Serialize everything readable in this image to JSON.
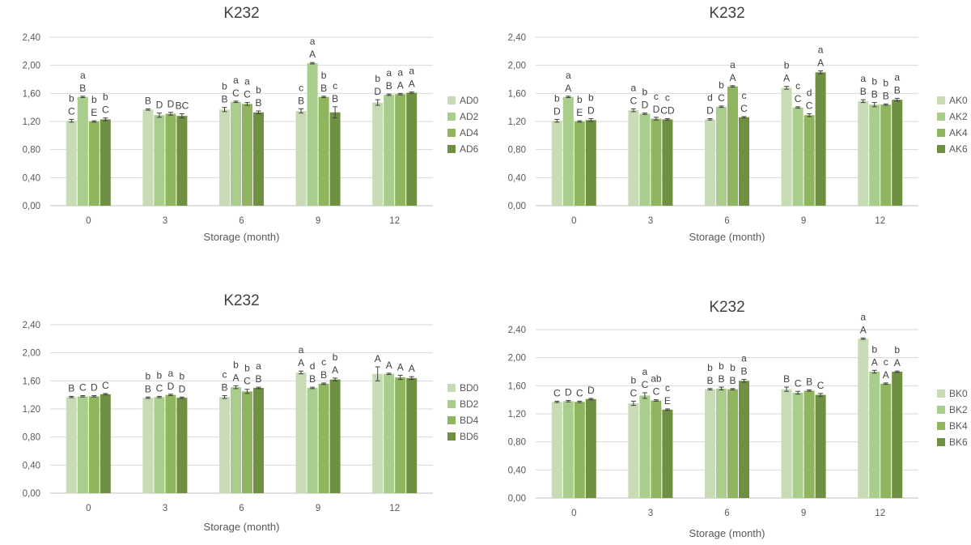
{
  "colors": [
    "#c7dbb4",
    "#a9cd8c",
    "#8fb65e",
    "#6f8f42"
  ],
  "chart_data": [
    {
      "type": "bar",
      "title": "K232",
      "xlabel": "Storage (month)",
      "ylabel": "",
      "categories": [
        "0",
        "3",
        "6",
        "9",
        "12"
      ],
      "yticks": [
        "0,00",
        "0,40",
        "0,80",
        "1,20",
        "1,60",
        "2,00",
        "2,40"
      ],
      "ylim": [
        0,
        2.4
      ],
      "grid": true,
      "legend_position": "right",
      "series": [
        {
          "name": "AD0",
          "values": [
            1.21,
            1.37,
            1.37,
            1.35,
            1.47
          ],
          "errors": [
            0.02,
            0.01,
            0.03,
            0.03,
            0.04
          ],
          "labels_upper": [
            "b",
            "",
            "b",
            "c",
            "b"
          ],
          "labels_lower": [
            "C",
            "B",
            "B",
            "B",
            "D"
          ]
        },
        {
          "name": "AD2",
          "values": [
            1.55,
            1.29,
            1.48,
            2.03,
            1.58
          ],
          "errors": [
            0.01,
            0.03,
            0.01,
            0.01,
            0.01
          ],
          "labels_upper": [
            "a",
            "",
            "a",
            "a",
            "a"
          ],
          "labels_lower": [
            "B",
            "D",
            "C",
            "A",
            "B"
          ]
        },
        {
          "name": "AD4",
          "values": [
            1.2,
            1.31,
            1.45,
            1.55,
            1.59
          ],
          "errors": [
            0.01,
            0.02,
            0.02,
            0.01,
            0.01
          ],
          "labels_upper": [
            "b",
            "",
            "a",
            "b",
            "a"
          ],
          "labels_lower": [
            "E",
            "D",
            "C",
            "B",
            "A"
          ]
        },
        {
          "name": "AD6",
          "values": [
            1.23,
            1.28,
            1.33,
            1.33,
            1.61
          ],
          "errors": [
            0.02,
            0.03,
            0.02,
            0.08,
            0.01
          ],
          "labels_upper": [
            "b",
            "",
            "b",
            "c",
            "a"
          ],
          "labels_lower": [
            "C",
            "BC",
            "B",
            "B",
            "A"
          ]
        }
      ]
    },
    {
      "type": "bar",
      "title": "K232",
      "xlabel": "Storage (month)",
      "ylabel": "",
      "categories": [
        "0",
        "3",
        "6",
        "9",
        "12"
      ],
      "yticks": [
        "0,00",
        "0,40",
        "0,80",
        "1,20",
        "1,60",
        "2,00",
        "2,40"
      ],
      "ylim": [
        0,
        2.4
      ],
      "grid": true,
      "legend_position": "right",
      "series": [
        {
          "name": "AK0",
          "values": [
            1.21,
            1.36,
            1.23,
            1.68,
            1.49
          ],
          "errors": [
            0.02,
            0.02,
            0.01,
            0.02,
            0.02
          ],
          "labels_upper": [
            "b",
            "a",
            "d",
            "b",
            "a"
          ],
          "labels_lower": [
            "D",
            "C",
            "D",
            "A",
            "B"
          ]
        },
        {
          "name": "AK2",
          "values": [
            1.55,
            1.31,
            1.41,
            1.4,
            1.44
          ],
          "errors": [
            0.01,
            0.01,
            0.01,
            0.01,
            0.03
          ],
          "labels_upper": [
            "a",
            "b",
            "b",
            "c",
            "b"
          ],
          "labels_lower": [
            "A",
            "D",
            "C",
            "C",
            "B"
          ]
        },
        {
          "name": "AK4",
          "values": [
            1.2,
            1.24,
            1.7,
            1.29,
            1.44
          ],
          "errors": [
            0.01,
            0.02,
            0.01,
            0.02,
            0.01
          ],
          "labels_upper": [
            "b",
            "c",
            "a",
            "d",
            "b"
          ],
          "labels_lower": [
            "E",
            "D",
            "A",
            "C",
            "B"
          ]
        },
        {
          "name": "AK6",
          "values": [
            1.22,
            1.23,
            1.26,
            1.9,
            1.51
          ],
          "errors": [
            0.02,
            0.01,
            0.01,
            0.02,
            0.02
          ],
          "labels_upper": [
            "b",
            "c",
            "c",
            "a",
            "a"
          ],
          "labels_lower": [
            "D",
            "CD",
            "C",
            "A",
            "B"
          ]
        }
      ]
    },
    {
      "type": "bar",
      "title": "K232",
      "xlabel": "Storage (month)",
      "ylabel": "",
      "categories": [
        "0",
        "3",
        "6",
        "9",
        "12"
      ],
      "yticks": [
        "0,00",
        "0,40",
        "0,80",
        "1,20",
        "1,60",
        "2,00",
        "2,40"
      ],
      "ylim": [
        0,
        2.4
      ],
      "grid": true,
      "legend_position": "right",
      "series": [
        {
          "name": "BD0",
          "values": [
            1.37,
            1.36,
            1.37,
            1.72,
            1.7
          ],
          "errors": [
            0.01,
            0.01,
            0.02,
            0.02,
            0.1
          ],
          "labels_upper": [
            "",
            "b",
            "c",
            "a",
            ""
          ],
          "labels_lower": [
            "B",
            "B",
            "B",
            "A",
            "A"
          ]
        },
        {
          "name": "BD2",
          "values": [
            1.38,
            1.37,
            1.51,
            1.5,
            1.7
          ],
          "errors": [
            0.01,
            0.01,
            0.02,
            0.01,
            0.01
          ],
          "labels_upper": [
            "",
            "b",
            "b",
            "d",
            ""
          ],
          "labels_lower": [
            "C",
            "C",
            "A",
            "B",
            "A"
          ]
        },
        {
          "name": "BD4",
          "values": [
            1.38,
            1.4,
            1.45,
            1.56,
            1.65
          ],
          "errors": [
            0.01,
            0.01,
            0.03,
            0.01,
            0.03
          ],
          "labels_upper": [
            "",
            "a",
            "b",
            "c",
            ""
          ],
          "labels_lower": [
            "D",
            "D",
            "C",
            "B",
            "A"
          ]
        },
        {
          "name": "BD6",
          "values": [
            1.41,
            1.36,
            1.5,
            1.62,
            1.64
          ],
          "errors": [
            0.01,
            0.01,
            0.01,
            0.02,
            0.02
          ],
          "labels_upper": [
            "",
            "b",
            "a",
            "b",
            ""
          ],
          "labels_lower": [
            "C",
            "D",
            "B",
            "A",
            "A"
          ]
        }
      ]
    },
    {
      "type": "bar",
      "title": "K232",
      "xlabel": "Storage (month)",
      "ylabel": "",
      "categories": [
        "0",
        "3",
        "6",
        "9",
        "12"
      ],
      "yticks": [
        "0,00",
        "0,40",
        "0,80",
        "1,20",
        "1,60",
        "2,00",
        "2,40"
      ],
      "ylim": [
        0,
        2.4
      ],
      "grid": true,
      "legend_position": "right",
      "series": [
        {
          "name": "BK0",
          "values": [
            1.37,
            1.35,
            1.55,
            1.55,
            2.27
          ],
          "errors": [
            0.01,
            0.03,
            0.01,
            0.03,
            0.01
          ],
          "labels_upper": [
            "",
            "b",
            "b",
            "",
            "a"
          ],
          "labels_lower": [
            "C",
            "C",
            "B",
            "B",
            "A"
          ]
        },
        {
          "name": "BK2",
          "values": [
            1.38,
            1.46,
            1.56,
            1.5,
            1.8
          ],
          "errors": [
            0.01,
            0.04,
            0.02,
            0.02,
            0.02
          ],
          "labels_upper": [
            "",
            "a",
            "b",
            "",
            "b"
          ],
          "labels_lower": [
            "D",
            "C",
            "B",
            "C",
            "A"
          ]
        },
        {
          "name": "BK4",
          "values": [
            1.37,
            1.39,
            1.55,
            1.53,
            1.63
          ],
          "errors": [
            0.01,
            0.01,
            0.01,
            0.01,
            0.01
          ],
          "labels_upper": [
            "",
            "ab",
            "b",
            "",
            "c"
          ],
          "labels_lower": [
            "C",
            "C",
            "B",
            "B",
            "A"
          ]
        },
        {
          "name": "BK6",
          "values": [
            1.41,
            1.26,
            1.67,
            1.47,
            1.8
          ],
          "errors": [
            0.01,
            0.01,
            0.02,
            0.02,
            0.01
          ],
          "labels_upper": [
            "",
            "c",
            "a",
            "",
            "b"
          ],
          "labels_lower": [
            "D",
            "E",
            "B",
            "C",
            "A"
          ]
        }
      ]
    }
  ]
}
